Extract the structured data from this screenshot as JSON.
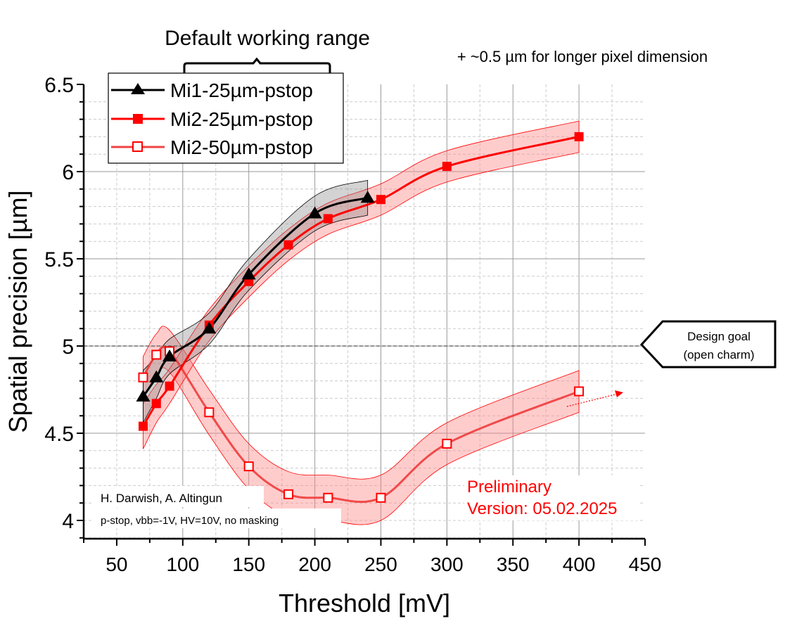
{
  "chart_data": {
    "type": "line",
    "xlabel": "Threshold [mV]",
    "ylabel": "Spatial precision [µm]",
    "xlim": [
      25,
      450
    ],
    "ylim": [
      3.9,
      6.5
    ],
    "xticks": [
      50,
      100,
      150,
      200,
      250,
      300,
      350,
      400,
      450
    ],
    "yticks": [
      4,
      4.5,
      5,
      5.5,
      6,
      6.5
    ],
    "ytick_labels": [
      "4",
      "4.5",
      "5",
      "5.5",
      "6",
      "6.5"
    ],
    "grid": true,
    "legend_position": "top-left",
    "series": [
      {
        "name": "Mi1-25µm-pstop",
        "marker": "filled-triangle",
        "color": "#000000",
        "band_color": "#808080",
        "x": [
          70,
          80,
          90,
          120,
          150,
          200,
          240
        ],
        "y": [
          4.71,
          4.82,
          4.94,
          5.1,
          5.41,
          5.76,
          5.85
        ],
        "band_halfwidth": [
          0.15,
          0.12,
          0.1,
          0.09,
          0.09,
          0.1,
          0.1
        ]
      },
      {
        "name": "Mi2-25µm-pstop",
        "marker": "filled-square",
        "color": "#ff0000",
        "band_color": "#ff8080",
        "x": [
          70,
          80,
          90,
          120,
          150,
          180,
          210,
          250,
          300,
          400
        ],
        "y": [
          4.54,
          4.67,
          4.77,
          5.12,
          5.37,
          5.58,
          5.73,
          5.84,
          6.03,
          6.2
        ],
        "band_halfwidth": [
          0.13,
          0.11,
          0.1,
          0.09,
          0.09,
          0.09,
          0.09,
          0.09,
          0.09,
          0.09
        ]
      },
      {
        "name": "Mi2-50µm-pstop",
        "marker": "open-square",
        "color": "#ee3333",
        "band_color": "#ff8080",
        "x": [
          70,
          80,
          90,
          120,
          150,
          180,
          210,
          250,
          300,
          400
        ],
        "y": [
          4.82,
          4.95,
          4.97,
          4.62,
          4.31,
          4.15,
          4.13,
          4.13,
          4.44,
          4.74
        ],
        "band_halfwidth": [
          0.12,
          0.12,
          0.12,
          0.13,
          0.13,
          0.13,
          0.13,
          0.13,
          0.12,
          0.12
        ]
      }
    ],
    "annotations": {
      "working_range": {
        "label": "Default working range",
        "x_from": 100,
        "x_to": 210
      },
      "pixel_note": "+ ~0.5 µm for longer pixel dimension",
      "design_goal": {
        "value": 5.0,
        "line1": "Design goal",
        "line2": "(open charm)"
      },
      "authors": "H. Darwish, A. Altingun",
      "conditions": "p-stop, vbb=-1V, HV=10V, no masking",
      "preliminary_line1": "Preliminary",
      "preliminary_line2": "Version: 05.02.2025"
    }
  }
}
